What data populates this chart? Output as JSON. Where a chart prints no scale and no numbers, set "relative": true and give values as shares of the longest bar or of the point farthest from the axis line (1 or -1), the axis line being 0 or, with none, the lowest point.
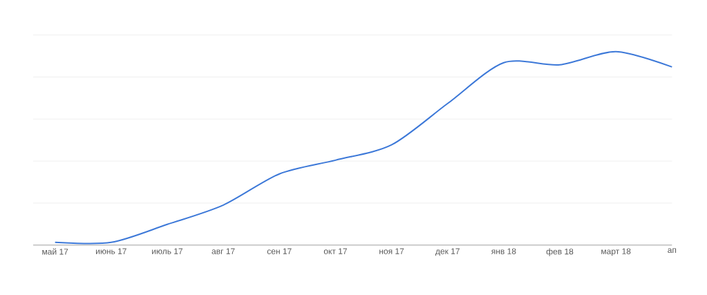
{
  "chart_data": {
    "type": "line",
    "relative": true,
    "categories": [
      "май 17",
      "июнь 17",
      "июль 17",
      "авг 17",
      "сен 17",
      "окт 17",
      "ноя 17",
      "дек 17",
      "янв 18",
      "фев 18",
      "март 18",
      "ап"
    ],
    "series": [
      {
        "color": "#3c78d8",
        "values": [
          0.014,
          0.014,
          0.107,
          0.207,
          0.368,
          0.439,
          0.518,
          0.732,
          0.943,
          0.932,
          1,
          0.921
        ]
      }
    ],
    "grid": "y",
    "marker": "none",
    "line_style": "solid"
  }
}
